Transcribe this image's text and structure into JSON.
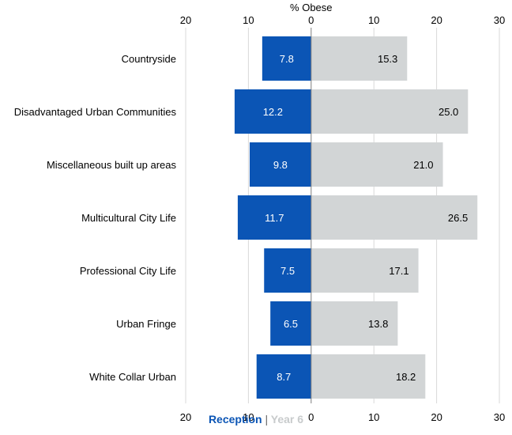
{
  "chart_data": {
    "type": "bar",
    "orientation": "horizontal-diverging",
    "title": "% Obese",
    "categories": [
      "Countryside",
      "Disadvantaged Urban Communities",
      "Miscellaneous built up areas",
      "Multicultural City Life",
      "Professional City Life",
      "Urban Fringe",
      "White Collar Urban"
    ],
    "series": [
      {
        "name": "Reception",
        "values": [
          7.8,
          12.2,
          9.8,
          11.7,
          7.5,
          6.5,
          8.7
        ],
        "color": "#0b55b5",
        "direction": "left"
      },
      {
        "name": "Year 6",
        "values": [
          15.3,
          25.0,
          21.0,
          26.5,
          17.1,
          13.8,
          18.2
        ],
        "color": "#d2d5d6",
        "direction": "right"
      }
    ],
    "value_labels": {
      "Reception": [
        "7.8",
        "12.2",
        "9.8",
        "11.7",
        "7.5",
        "6.5",
        "8.7"
      ],
      "Year 6": [
        "15.3",
        "25.0",
        "21.0",
        "26.5",
        "17.1",
        "13.8",
        "18.2"
      ]
    },
    "xlim": [
      -20,
      30
    ],
    "tick_values": [
      -20,
      -10,
      0,
      10,
      20,
      30
    ],
    "tick_labels": [
      "20",
      "10",
      "0",
      "10",
      "20",
      "30"
    ],
    "grid": true,
    "legend_position": "bottom-center",
    "colors": {
      "reception": "#0b55b5",
      "year6": "#d2d5d6",
      "grid": "#d9d9d9",
      "axis": "#7f7f7f",
      "text": "#000000"
    }
  },
  "legend": {
    "reception_label": "Reception",
    "separator": "|",
    "year6_label": "Year 6"
  }
}
